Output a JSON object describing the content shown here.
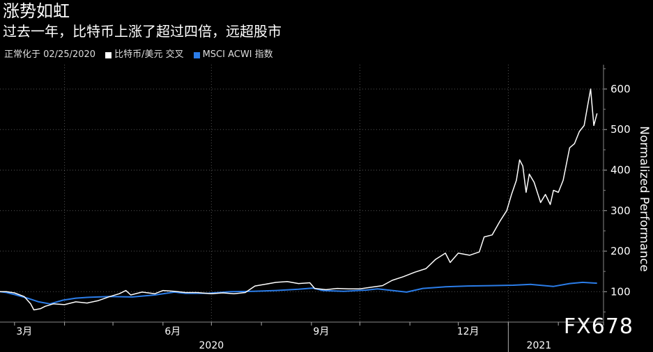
{
  "header": {
    "title": "涨势如虹",
    "subtitle": "过去一年，比特币上涨了超过四倍，远超股市",
    "normalization_note": "正常化于 02/25/2020"
  },
  "watermark": "FX678",
  "colors": {
    "background": "#000000",
    "bitcoin": "#ffffff",
    "msci": "#2b7de9",
    "grid": "#555555"
  },
  "chart_data": {
    "type": "line",
    "ylabel": "Normalized Performance",
    "ylim": [
      25,
      660
    ],
    "yticks": [
      100,
      200,
      300,
      400,
      500,
      600
    ],
    "xlim": [
      "2020-02-21",
      "2021-03-01"
    ],
    "xticks": [
      {
        "date": "2020-03-01",
        "label": "3月"
      },
      {
        "date": "2020-06-01",
        "label": "6月"
      },
      {
        "date": "2020-09-01",
        "label": "9月"
      },
      {
        "date": "2020-12-01",
        "label": "12月"
      }
    ],
    "year_labels": [
      {
        "date": "2020-07-01",
        "label": "2020"
      },
      {
        "date": "2021-01-20",
        "label": "2021"
      }
    ],
    "year_divider": "2021-01-01",
    "legend": [
      "比特币/美元 交叉",
      "MSCI ACWI 指数"
    ],
    "series": [
      {
        "name": "比特币/美元 交叉",
        "color": "#ffffff",
        "points": [
          [
            "2020-02-21",
            100
          ],
          [
            "2020-02-25",
            100
          ],
          [
            "2020-03-01",
            97
          ],
          [
            "2020-03-07",
            88
          ],
          [
            "2020-03-11",
            70
          ],
          [
            "2020-03-13",
            55
          ],
          [
            "2020-03-17",
            58
          ],
          [
            "2020-03-20",
            64
          ],
          [
            "2020-03-25",
            70
          ],
          [
            "2020-04-01",
            68
          ],
          [
            "2020-04-08",
            75
          ],
          [
            "2020-04-15",
            72
          ],
          [
            "2020-04-22",
            78
          ],
          [
            "2020-04-29",
            88
          ],
          [
            "2020-05-05",
            95
          ],
          [
            "2020-05-09",
            103
          ],
          [
            "2020-05-12",
            92
          ],
          [
            "2020-05-19",
            99
          ],
          [
            "2020-05-27",
            95
          ],
          [
            "2020-06-01",
            103
          ],
          [
            "2020-06-08",
            101
          ],
          [
            "2020-06-15",
            98
          ],
          [
            "2020-06-22",
            98
          ],
          [
            "2020-07-01",
            95
          ],
          [
            "2020-07-08",
            97
          ],
          [
            "2020-07-15",
            95
          ],
          [
            "2020-07-22",
            98
          ],
          [
            "2020-07-28",
            114
          ],
          [
            "2020-08-03",
            118
          ],
          [
            "2020-08-10",
            123
          ],
          [
            "2020-08-17",
            125
          ],
          [
            "2020-08-24",
            120
          ],
          [
            "2020-08-31",
            122
          ],
          [
            "2020-09-03",
            108
          ],
          [
            "2020-09-10",
            105
          ],
          [
            "2020-09-17",
            108
          ],
          [
            "2020-09-24",
            107
          ],
          [
            "2020-10-01",
            107
          ],
          [
            "2020-10-08",
            111
          ],
          [
            "2020-10-15",
            115
          ],
          [
            "2020-10-21",
            128
          ],
          [
            "2020-10-28",
            137
          ],
          [
            "2020-11-04",
            148
          ],
          [
            "2020-11-11",
            157
          ],
          [
            "2020-11-17",
            180
          ],
          [
            "2020-11-23",
            195
          ],
          [
            "2020-11-26",
            172
          ],
          [
            "2020-12-01",
            195
          ],
          [
            "2020-12-08",
            190
          ],
          [
            "2020-12-14",
            198
          ],
          [
            "2020-12-17",
            235
          ],
          [
            "2020-12-22",
            240
          ],
          [
            "2020-12-27",
            275
          ],
          [
            "2020-12-31",
            300
          ],
          [
            "2021-01-03",
            340
          ],
          [
            "2021-01-06",
            375
          ],
          [
            "2021-01-08",
            425
          ],
          [
            "2021-01-10",
            410
          ],
          [
            "2021-01-12",
            345
          ],
          [
            "2021-01-14",
            390
          ],
          [
            "2021-01-17",
            370
          ],
          [
            "2021-01-21",
            320
          ],
          [
            "2021-01-24",
            340
          ],
          [
            "2021-01-27",
            315
          ],
          [
            "2021-01-29",
            350
          ],
          [
            "2021-02-01",
            345
          ],
          [
            "2021-02-04",
            375
          ],
          [
            "2021-02-08",
            455
          ],
          [
            "2021-02-11",
            465
          ],
          [
            "2021-02-14",
            495
          ],
          [
            "2021-02-17",
            510
          ],
          [
            "2021-02-19",
            555
          ],
          [
            "2021-02-21",
            600
          ],
          [
            "2021-02-23",
            510
          ],
          [
            "2021-02-25",
            540
          ]
        ]
      },
      {
        "name": "MSCI ACWI 指数",
        "color": "#2b7de9",
        "points": [
          [
            "2020-02-21",
            100
          ],
          [
            "2020-02-25",
            98
          ],
          [
            "2020-03-01",
            93
          ],
          [
            "2020-03-09",
            84
          ],
          [
            "2020-03-16",
            75
          ],
          [
            "2020-03-23",
            70
          ],
          [
            "2020-03-31",
            79
          ],
          [
            "2020-04-08",
            84
          ],
          [
            "2020-04-15",
            86
          ],
          [
            "2020-04-29",
            88
          ],
          [
            "2020-05-13",
            87
          ],
          [
            "2020-05-27",
            92
          ],
          [
            "2020-06-08",
            99
          ],
          [
            "2020-06-15",
            96
          ],
          [
            "2020-06-29",
            96
          ],
          [
            "2020-07-13",
            100
          ],
          [
            "2020-07-27",
            101
          ],
          [
            "2020-08-10",
            103
          ],
          [
            "2020-08-24",
            106
          ],
          [
            "2020-09-02",
            109
          ],
          [
            "2020-09-08",
            103
          ],
          [
            "2020-09-21",
            101
          ],
          [
            "2020-10-05",
            104
          ],
          [
            "2020-10-12",
            107
          ],
          [
            "2020-10-30",
            99
          ],
          [
            "2020-11-09",
            108
          ],
          [
            "2020-11-23",
            112
          ],
          [
            "2020-12-07",
            114
          ],
          [
            "2020-12-21",
            115
          ],
          [
            "2021-01-04",
            116
          ],
          [
            "2021-01-15",
            118
          ],
          [
            "2021-01-29",
            113
          ],
          [
            "2021-02-08",
            120
          ],
          [
            "2021-02-16",
            123
          ],
          [
            "2021-02-25",
            121
          ]
        ]
      }
    ]
  }
}
